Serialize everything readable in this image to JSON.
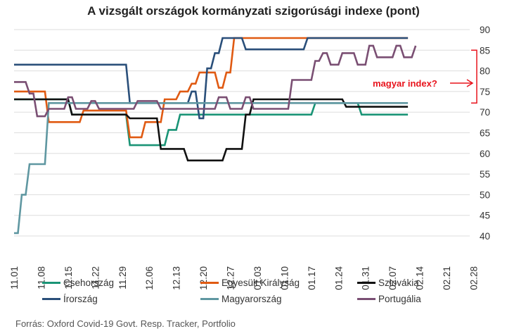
{
  "chart_data": {
    "type": "line",
    "title": "A vizsgált országok kormányzati szigorúsági indexe (pont)",
    "xlabel": "",
    "ylabel": "",
    "x_ticks": [
      "11.01",
      "11.08",
      "11.15",
      "11.22",
      "11.29",
      "12.06",
      "12.13",
      "12.20",
      "12.27",
      "01.03",
      "01.10",
      "01.17",
      "01.24",
      "01.31",
      "02.07",
      "02.14",
      "02.21",
      "02.28"
    ],
    "y_ticks": [
      40,
      45,
      50,
      55,
      60,
      65,
      70,
      75,
      80,
      85,
      90
    ],
    "ylim": [
      40,
      90
    ],
    "y_axis_side": "right",
    "grid": true,
    "legend_position": "bottom",
    "annotation": "magyar index?",
    "series": [
      {
        "name": "Csehország",
        "color": "#1a9476",
        "points": [
          [
            0,
            73.1
          ],
          [
            14,
            73.1
          ],
          [
            15,
            69.4
          ],
          [
            29,
            69.4
          ],
          [
            30,
            62
          ],
          [
            39,
            62
          ],
          [
            40,
            65.7
          ],
          [
            42,
            65.7
          ],
          [
            43,
            69.4
          ],
          [
            77,
            69.4
          ],
          [
            78,
            72.2
          ],
          [
            89,
            72.2
          ],
          [
            90,
            69.4
          ],
          [
            102,
            69.4
          ]
        ]
      },
      {
        "name": "Egyesült Királyság",
        "color": "#e05a12",
        "points": [
          [
            0,
            75
          ],
          [
            8,
            75
          ],
          [
            9,
            67.6
          ],
          [
            17,
            67.6
          ],
          [
            18,
            70.4
          ],
          [
            29,
            70.4
          ],
          [
            30,
            63.9
          ],
          [
            33,
            63.9
          ],
          [
            34,
            67.6
          ],
          [
            38,
            67.6
          ],
          [
            39,
            73.1
          ],
          [
            42,
            73.1
          ],
          [
            43,
            75
          ],
          [
            45,
            75
          ],
          [
            46,
            76.9
          ],
          [
            47,
            76.9
          ],
          [
            48,
            79.6
          ],
          [
            52,
            79.6
          ],
          [
            53,
            75.9
          ],
          [
            54,
            75.9
          ],
          [
            55,
            79.6
          ],
          [
            56,
            79.6
          ],
          [
            57,
            87.96
          ],
          [
            102,
            87.96
          ]
        ]
      },
      {
        "name": "Szlovákia",
        "color": "#111111",
        "points": [
          [
            0,
            73.1
          ],
          [
            14,
            73.1
          ],
          [
            15,
            69.4
          ],
          [
            29,
            69.4
          ],
          [
            30,
            68.5
          ],
          [
            37,
            68.5
          ],
          [
            38,
            61.1
          ],
          [
            44,
            61.1
          ],
          [
            45,
            58.3
          ],
          [
            54,
            58.3
          ],
          [
            55,
            61.1
          ],
          [
            59,
            61.1
          ],
          [
            60,
            69.4
          ],
          [
            61,
            69.4
          ],
          [
            62,
            73.1
          ],
          [
            85,
            73.1
          ],
          [
            86,
            71.3
          ],
          [
            102,
            71.3
          ]
        ]
      },
      {
        "name": "Írország",
        "color": "#2a4f7a",
        "points": [
          [
            0,
            81.5
          ],
          [
            29,
            81.5
          ],
          [
            30,
            72.2
          ],
          [
            45,
            72.2
          ],
          [
            46,
            75
          ],
          [
            47,
            75
          ],
          [
            48,
            68.5
          ],
          [
            49,
            68.5
          ],
          [
            50,
            80.6
          ],
          [
            51,
            80.6
          ],
          [
            52,
            84.3
          ],
          [
            53,
            84.3
          ],
          [
            54,
            87.96
          ],
          [
            59,
            87.96
          ],
          [
            60,
            85.2
          ],
          [
            75,
            85.2
          ],
          [
            76,
            87.96
          ],
          [
            102,
            87.96
          ]
        ]
      },
      {
        "name": "Magyarország",
        "color": "#5f97a1",
        "points": [
          [
            0,
            40.7
          ],
          [
            1,
            40.7
          ],
          [
            2,
            50
          ],
          [
            3,
            50
          ],
          [
            4,
            57.4
          ],
          [
            8,
            57.4
          ],
          [
            9,
            72.2
          ],
          [
            102,
            72.2
          ]
        ]
      },
      {
        "name": "Portugália",
        "color": "#7a4f73",
        "points": [
          [
            0,
            77.3
          ],
          [
            3,
            77.3
          ],
          [
            4,
            74.5
          ],
          [
            5,
            74.5
          ],
          [
            6,
            69
          ],
          [
            8,
            69
          ],
          [
            9,
            70.8
          ],
          [
            13,
            70.8
          ],
          [
            14,
            73.6
          ],
          [
            15,
            73.6
          ],
          [
            16,
            70.8
          ],
          [
            19,
            70.8
          ],
          [
            20,
            72.7
          ],
          [
            21,
            72.7
          ],
          [
            22,
            70.8
          ],
          [
            31,
            70.8
          ],
          [
            32,
            72.7
          ],
          [
            37,
            72.7
          ],
          [
            38,
            70.8
          ],
          [
            52,
            70.8
          ],
          [
            53,
            73.6
          ],
          [
            55,
            73.6
          ],
          [
            56,
            70.8
          ],
          [
            59,
            70.8
          ],
          [
            60,
            73.6
          ],
          [
            61,
            73.6
          ],
          [
            62,
            70.8
          ],
          [
            71,
            70.8
          ],
          [
            72,
            77.8
          ],
          [
            77,
            77.8
          ],
          [
            78,
            82.4
          ],
          [
            79,
            82.4
          ],
          [
            80,
            84.3
          ],
          [
            81,
            84.3
          ],
          [
            82,
            81.5
          ],
          [
            84,
            81.5
          ],
          [
            85,
            84.3
          ],
          [
            88,
            84.3
          ],
          [
            89,
            81.5
          ],
          [
            91,
            81.5
          ],
          [
            92,
            86.1
          ],
          [
            93,
            86.1
          ],
          [
            94,
            83.3
          ],
          [
            98,
            83.3
          ],
          [
            99,
            86.1
          ],
          [
            100,
            86.1
          ],
          [
            101,
            83.3
          ],
          [
            103,
            83.3
          ],
          [
            104,
            86.1
          ]
        ]
      }
    ]
  },
  "source": "Forrás: Oxford Covid-19 Govt. Resp. Tracker, Portfolio",
  "colors": {
    "annotation": "#e8131c",
    "grid": "#dddddd"
  }
}
